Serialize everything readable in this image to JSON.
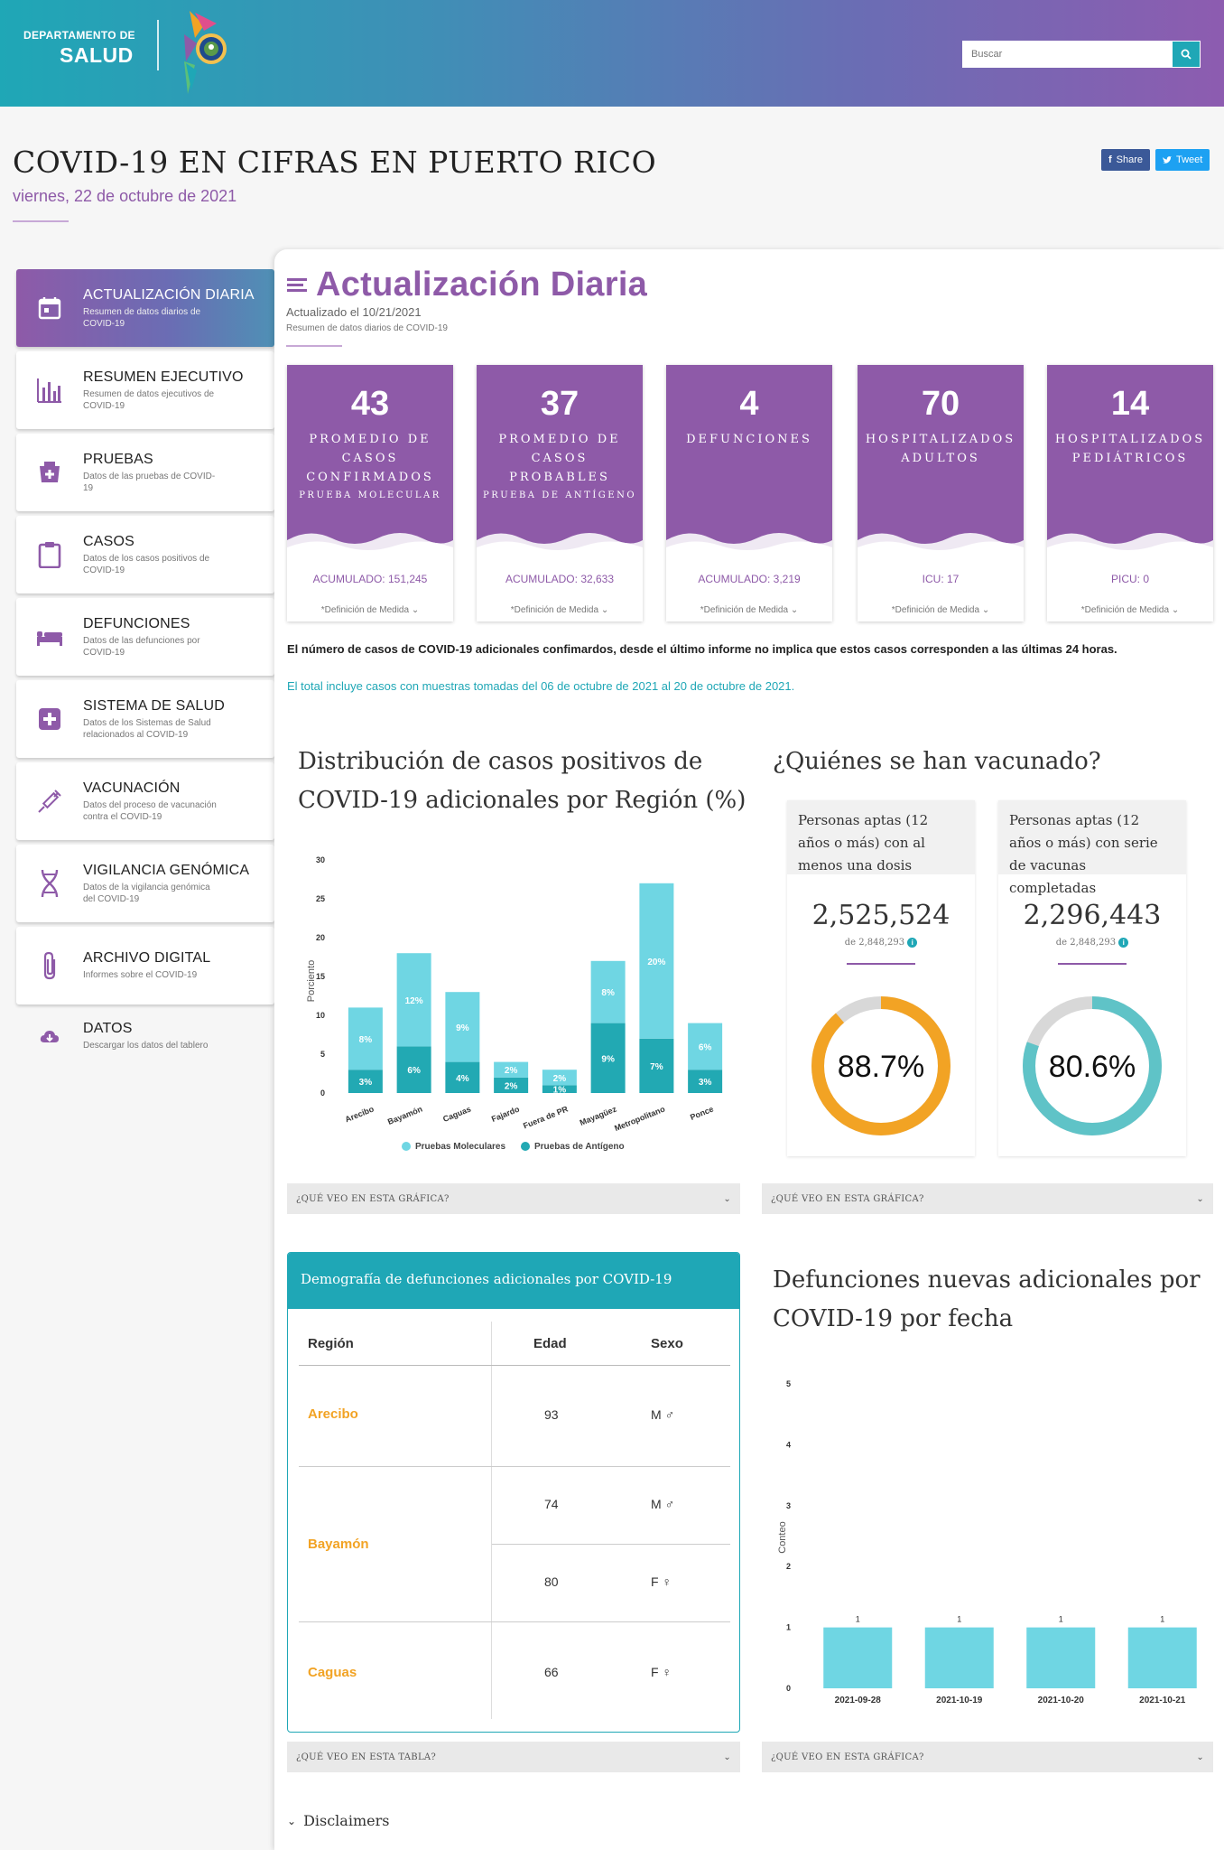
{
  "header": {
    "brand_small": "DEPARTAMENTO DE",
    "brand_big": "SALUD",
    "search_placeholder": "Buscar"
  },
  "page": {
    "title": "COVID-19 EN CIFRAS EN PUERTO RICO",
    "date": "viernes, 22 de octubre de 2021",
    "share_label": "Share",
    "tweet_label": "Tweet"
  },
  "sidebar": {
    "items": [
      {
        "label": "ACTUALIZACIÓN DIARIA",
        "desc": "Resumen de datos diarios de COVID-19",
        "icon": "calendar-icon"
      },
      {
        "label": "RESUMEN EJECUTIVO",
        "desc": "Resumen de datos ejecutivos de COVID-19",
        "icon": "bar-chart-icon"
      },
      {
        "label": "PRUEBAS",
        "desc": "Datos de las pruebas de COVID-19",
        "icon": "test-kit-icon"
      },
      {
        "label": "CASOS",
        "desc": "Datos de los casos positivos de COVID-19",
        "icon": "clipboard-icon"
      },
      {
        "label": "DEFUNCIONES",
        "desc": "Datos de las defunciones por COVID-19",
        "icon": "bed-icon"
      },
      {
        "label": "SISTEMA DE SALUD",
        "desc": "Datos de los Sistemas de Salud relacionados al COVID-19",
        "icon": "health-cross-icon"
      },
      {
        "label": "VACUNACIÓN",
        "desc": "Datos del proceso de vacunación contra el COVID-19",
        "icon": "syringe-icon"
      },
      {
        "label": "VIGILANCIA GENÓMICA",
        "desc": "Datos de la vigilancia genómica del COVID-19",
        "icon": "dna-icon"
      },
      {
        "label": "ARCHIVO DIGITAL",
        "desc": "Informes sobre el COVID-19",
        "icon": "paperclip-icon"
      },
      {
        "label": "DATOS",
        "desc": "Descargar los datos del tablero",
        "icon": "cloud-download-icon"
      }
    ]
  },
  "section": {
    "title": "Actualización Diaria",
    "updated": "Actualizado el 10/21/2021",
    "subtitle": "Resumen de datos diarios de COVID-19"
  },
  "cards": [
    {
      "number": "43",
      "label": "PROMEDIO DE CASOS CONFIRMADOS",
      "sublabel": "PRUEBA MOLECULAR",
      "acc": "ACUMULADO: 151,245",
      "def": "*Definición de Medida"
    },
    {
      "number": "37",
      "label": "PROMEDIO DE CASOS PROBABLES",
      "sublabel": "PRUEBA DE ANTÍGENO",
      "acc": "ACUMULADO: 32,633",
      "def": "*Definición de Medida"
    },
    {
      "number": "4",
      "label": "DEFUNCIONES",
      "sublabel": "",
      "acc": "ACUMULADO: 3,219",
      "def": "*Definición de Medida"
    },
    {
      "number": "70",
      "label": "HOSPITALIZADOS ADULTOS",
      "sublabel": "",
      "acc": "ICU: 17",
      "def": "*Definición de Medida"
    },
    {
      "number": "14",
      "label": "HOSPITALIZADOS PEDIÁTRICOS",
      "sublabel": "",
      "acc": "PICU: 0",
      "def": "*Definición de Medida"
    }
  ],
  "notes": {
    "bold": "El número de casos de COVID-19 adicionales confimardos, desde el último informe no implica que estos casos corresponden a las últimas 24 horas.",
    "range": "El total incluye casos con muestras tomadas del 06 de octubre de 2021 al 20 de octubre de 2021."
  },
  "region_chart": {
    "title_line1": "Distribución de casos positivos de",
    "title_line2": "COVID-19 adicionales por Región (%)",
    "accordion": "¿QUÉ VEO EN ESTA GRÁFICA?"
  },
  "vaccination": {
    "title": "¿Quiénes se han vacunado?",
    "accordion": "¿QUÉ VEO EN ESTA GRÁFICA?",
    "cards": [
      {
        "head": "Personas aptas (12 años o más) con al menos una dosis",
        "number": "2,525,524",
        "de": "de 2,848,293",
        "pct": "88.7%",
        "value": 88.7,
        "color": "#f2a324"
      },
      {
        "head": "Personas aptas (12 años o más) con serie de vacunas completadas",
        "number": "2,296,443",
        "de": "de 2,848,293",
        "pct": "80.6%",
        "value": 80.6,
        "color": "#5fc3c7"
      }
    ]
  },
  "demography": {
    "title": "Demografía de defunciones adicionales por COVID-19",
    "col_region": "Región",
    "col_age": "Edad",
    "col_sex": "Sexo",
    "rows": [
      {
        "region": "Arecibo",
        "age": "93",
        "sex": "M"
      },
      {
        "region": "Bayamón",
        "age": "74",
        "sex": "M"
      },
      {
        "region": "",
        "age": "80",
        "sex": "F"
      },
      {
        "region": "Caguas",
        "age": "66",
        "sex": "F"
      }
    ],
    "accordion": "¿QUÉ VEO EN ESTA TABLA?"
  },
  "deaths_chart": {
    "title_line1": "Defunciones nuevas adicionales por",
    "title_line2": "COVID-19 por fecha",
    "accordion": "¿QUÉ VEO EN ESTA GRÁFICA?"
  },
  "disclaimers": "Disclaimers",
  "chart_data": [
    {
      "type": "bar",
      "stacked": true,
      "ylabel": "Porciento",
      "ylim": [
        0,
        30
      ],
      "yticks": [
        0,
        5,
        10,
        15,
        20,
        25,
        30
      ],
      "categories": [
        "Arecibo",
        "Bayamón",
        "Caguas",
        "Fajardo",
        "Fuera de PR",
        "Mayagüez",
        "Metropolitano",
        "Ponce"
      ],
      "series": [
        {
          "name": "Pruebas de Antígeno",
          "color": "#22a9b3",
          "values": [
            3,
            6,
            4,
            2,
            1,
            9,
            7,
            3
          ],
          "labels": [
            "3%",
            "6%",
            "4%",
            "2%",
            "1%",
            "9%",
            "7%",
            "3%"
          ]
        },
        {
          "name": "Pruebas Moleculares",
          "color": "#6fd6e3",
          "values": [
            8,
            12,
            9,
            2,
            2,
            8,
            20,
            6
          ],
          "labels": [
            "8%",
            "12%",
            "9%",
            "2%",
            "2%",
            "8%",
            "20%",
            "6%"
          ]
        }
      ],
      "legend": [
        "Pruebas Moleculares",
        "Pruebas de Antígeno"
      ],
      "legend_position": "bottom"
    },
    {
      "type": "bar",
      "ylabel": "Conteo",
      "ylim": [
        0,
        5
      ],
      "yticks": [
        0,
        1,
        2,
        3,
        4,
        5
      ],
      "categories": [
        "2021-09-28",
        "2021-10-19",
        "2021-10-20",
        "2021-10-21"
      ],
      "values": [
        1,
        1,
        1,
        1
      ],
      "color": "#6fd6e3"
    }
  ]
}
